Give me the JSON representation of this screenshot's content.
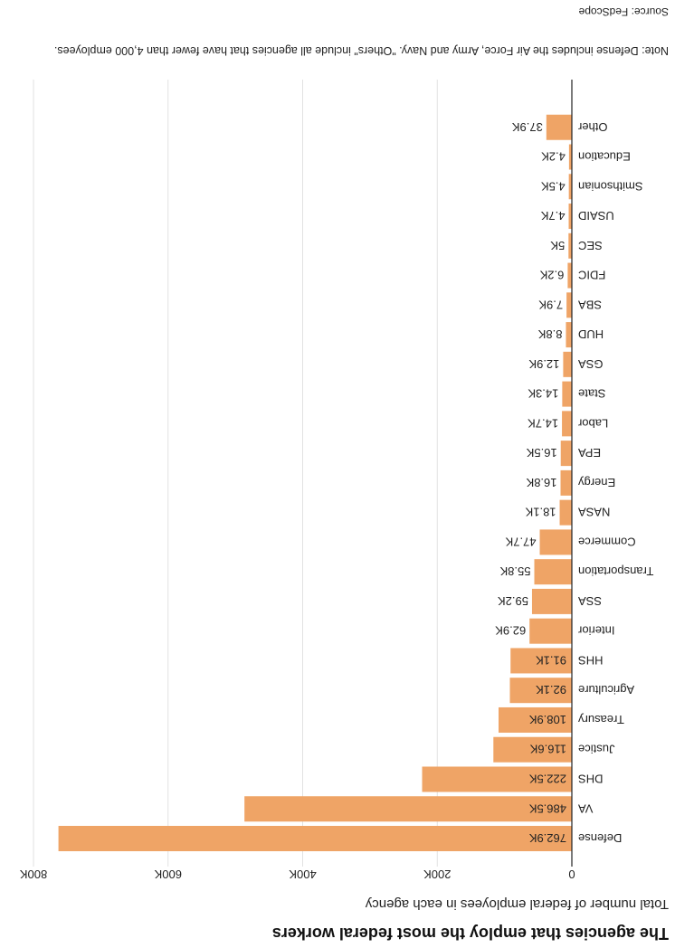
{
  "chart_data": {
    "type": "bar",
    "orientation": "horizontal",
    "title": "The agencies that employ the most federal workers",
    "subtitle": "Total number of federal employees in each agency",
    "xlabel": "",
    "ylabel": "",
    "xlim": [
      0,
      800000
    ],
    "ticks": [
      {
        "value": 0,
        "label": "0"
      },
      {
        "value": 200000,
        "label": "200K"
      },
      {
        "value": 400000,
        "label": "400K"
      },
      {
        "value": 600000,
        "label": "600K"
      },
      {
        "value": 800000,
        "label": "800K"
      }
    ],
    "grid": true,
    "categories": [
      "Defense",
      "VA",
      "DHS",
      "Justice",
      "Treasury",
      "Agriculture",
      "HHS",
      "Interior",
      "SSA",
      "Transportation",
      "Commerce",
      "NASA",
      "Energy",
      "EPA",
      "Labor",
      "State",
      "GSA",
      "HUD",
      "SBA",
      "FDIC",
      "SEC",
      "USAID",
      "Smithsonian",
      "Education",
      "Other"
    ],
    "values": [
      762900,
      486500,
      222500,
      116600,
      108900,
      92100,
      91100,
      62900,
      59200,
      55800,
      47700,
      18100,
      16800,
      16500,
      14700,
      14300,
      12900,
      8800,
      7900,
      6200,
      5000,
      4700,
      4500,
      4200,
      37900
    ],
    "value_labels": [
      "762.9K",
      "486.5K",
      "222.5K",
      "116.6K",
      "108.9K",
      "92.1K",
      "91.1K",
      "62.9K",
      "59.2K",
      "55.8K",
      "47.7K",
      "18.1K",
      "16.8K",
      "16.5K",
      "14.7K",
      "14.3K",
      "12.9K",
      "8.8K",
      "7.9K",
      "6.2K",
      "5K",
      "4.7K",
      "4.5K",
      "4.2K",
      "37.9K"
    ],
    "bar_color": "#efa466",
    "note": "Note: Defense includes the Air Force, Army and Navy. \"Others\" include all agencies that have fewer than 4,000 employees.",
    "source": "Source: FedScope"
  }
}
